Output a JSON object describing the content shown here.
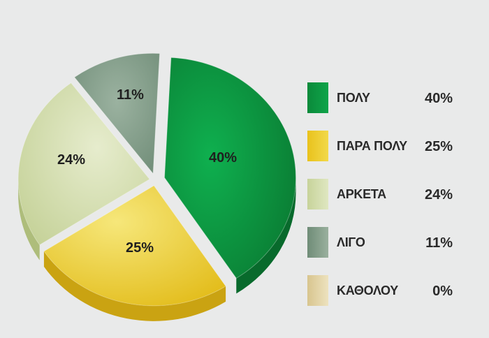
{
  "chart_data": {
    "type": "pie",
    "title": "",
    "legend_position": "right",
    "slices": [
      {
        "name": "ΠΟΛΥ",
        "value": 40,
        "label": "40%",
        "color": "#1f9a45"
      },
      {
        "name": "ΠΑΡΑ ΠΟΛΥ",
        "value": 25,
        "label": "25%",
        "color": "#e8c62c"
      },
      {
        "name": "ΑΡΚΕΤΑ",
        "value": 24,
        "label": "24%",
        "color": "#cdd8a6"
      },
      {
        "name": "ΛΙΓΟ",
        "value": 11,
        "label": "11%",
        "color": "#7f9b86"
      },
      {
        "name": "ΚΑΘΟΛΟΥ",
        "value": 0,
        "label": "0%",
        "color": "#e2d3a6"
      }
    ]
  }
}
